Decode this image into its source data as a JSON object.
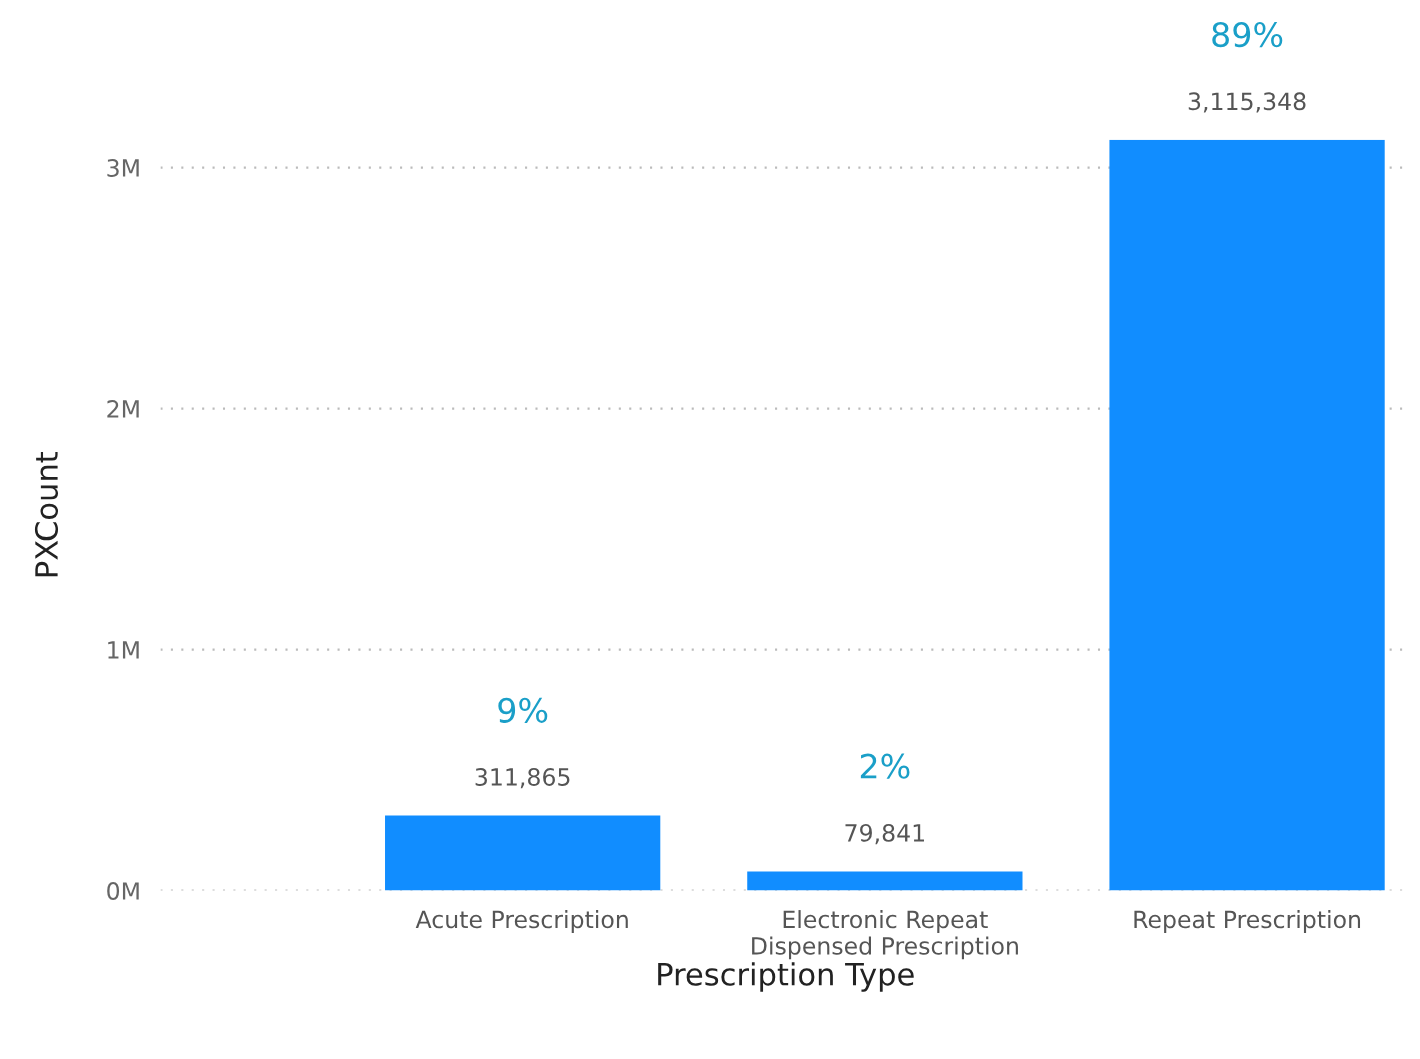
{
  "chart_data": {
    "type": "bar",
    "xlabel": "Prescription Type",
    "ylabel": "PXCount",
    "categories": [
      "Acute Prescription",
      "Electronic Repeat\nDispensed Prescription",
      "Repeat Prescription"
    ],
    "values": [
      311865,
      79841,
      3115348
    ],
    "color": "#118dff",
    "value_labels": [
      "311,865",
      "79,841",
      "3,115,348"
    ],
    "annotations": [
      {
        "text": "9%",
        "x": "Acute Prescription",
        "y": 311865
      },
      {
        "text": "2%",
        "x": "Electronic Repeat\nDispensed Prescription",
        "y": 79841
      },
      {
        "text": "89%",
        "x": "Repeat Prescription",
        "y": 3115348
      }
    ],
    "ylim": [
      0,
      3115348
    ],
    "yticks": [
      {
        "value": 0,
        "label": "0M"
      },
      {
        "value": 1000000,
        "label": "1M"
      },
      {
        "value": 2000000,
        "label": "2M"
      },
      {
        "value": 3000000,
        "label": "3M"
      }
    ],
    "grid": "y",
    "legend": false
  }
}
